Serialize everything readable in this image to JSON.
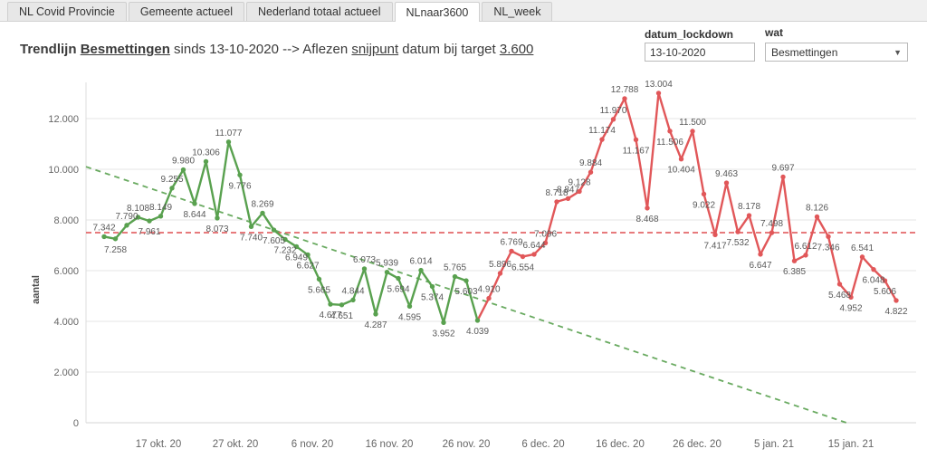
{
  "tabs": {
    "active_index": 3,
    "items": [
      {
        "label": "NL Covid Provincie"
      },
      {
        "label": "Gemeente actueel"
      },
      {
        "label": "Nederland totaal actueel"
      },
      {
        "label": "NLnaar3600"
      },
      {
        "label": "NL_week"
      }
    ]
  },
  "title": {
    "part1": "Trendlijn ",
    "besmettingen": "Besmettingen",
    "part2": " sinds 13-10-2020 --> Aflezen ",
    "snijpunt": "snijpunt",
    "part3": " datum bij target ",
    "target": "3.600"
  },
  "controls": {
    "datum_lockdown": {
      "label": "datum_lockdown",
      "value": "13-10-2020"
    },
    "wat": {
      "label": "wat",
      "value": "Besmettingen"
    }
  },
  "chart_data": {
    "type": "line",
    "title": "Trendlijn Besmettingen sinds 13-10-2020",
    "xlabel": "",
    "ylabel": "aantal",
    "ylim": [
      0,
      13500
    ],
    "grid": true,
    "legend": "none",
    "yticks": [
      0,
      2000,
      4000,
      6000,
      8000,
      10000,
      12000
    ],
    "ytick_labels": [
      "0",
      "2.000",
      "4.000",
      "6.000",
      "8.000",
      "10.000",
      "12.000"
    ],
    "xtick_labels": [
      "17 okt. 20",
      "27 okt. 20",
      "6 nov. 20",
      "16 nov. 20",
      "26 nov. 20",
      "6 dec. 20",
      "16 dec. 20",
      "26 dec. 20",
      "5 jan. 21",
      "15 jan. 21"
    ],
    "x_start_date": "13-10-2020",
    "series": [
      {
        "name": "besmettingen-groen",
        "color": "#59a14f",
        "values": [
          7342,
          7258,
          7790,
          8108,
          7961,
          8149,
          9255,
          9980,
          8644,
          10306,
          8073,
          11077,
          9776,
          7740,
          8269,
          7605,
          7232,
          6949,
          6627,
          5665,
          4677,
          4651,
          4844,
          6073,
          4287,
          5939,
          5694,
          4595,
          6014,
          5374,
          3952,
          5765,
          5603,
          4039
        ]
      },
      {
        "name": "besmettingen-rood",
        "color": "#e15759",
        "values": [
          4910,
          5896,
          6769,
          6554,
          6644,
          7096,
          8718,
          8847,
          9128,
          9884,
          11174,
          11970,
          12788,
          11167,
          8468,
          13004,
          11506,
          10404,
          11500,
          9022,
          7417,
          9463,
          7532,
          8178,
          6647,
          7498,
          9697,
          6385,
          6612,
          8126,
          7346,
          5468,
          4952,
          6541,
          6048,
          5606,
          4822
        ]
      }
    ],
    "reference_line": {
      "value": 7500,
      "color": "#e15759",
      "style": "dashed"
    },
    "trendline": {
      "start_value": 10100,
      "end_value": 0,
      "target": 3600,
      "color": "#59a14f",
      "style": "dashed"
    }
  }
}
